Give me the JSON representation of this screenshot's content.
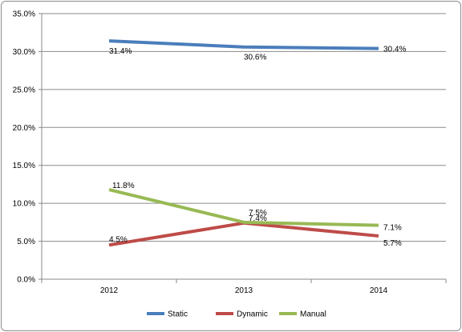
{
  "chart_data": {
    "type": "line",
    "categories": [
      "2012",
      "2013",
      "2014"
    ],
    "ylim": [
      0,
      35
    ],
    "ytick_values": [
      0,
      5,
      10,
      15,
      20,
      25,
      30,
      35
    ],
    "ytick_labels": [
      "0.0%",
      "5.0%",
      "10.0%",
      "15.0%",
      "20.0%",
      "25.0%",
      "30.0%",
      "35.0%"
    ],
    "grid": "horizontal",
    "legend_position": "bottom",
    "series": [
      {
        "name": "Static",
        "color": "#4a7ebb",
        "values": [
          31.4,
          30.6,
          30.4
        ],
        "labels": [
          "31.4%",
          "30.6%",
          "30.4%"
        ]
      },
      {
        "name": "Dynamic",
        "color": "#be4b48",
        "values": [
          4.5,
          7.4,
          5.7
        ],
        "labels": [
          "4.5%",
          "7.4%",
          "5.7%"
        ]
      },
      {
        "name": "Manual",
        "color": "#98b954",
        "values": [
          11.8,
          7.5,
          7.1
        ],
        "labels": [
          "11.8%",
          "7.5%",
          "7.1%"
        ]
      }
    ]
  }
}
